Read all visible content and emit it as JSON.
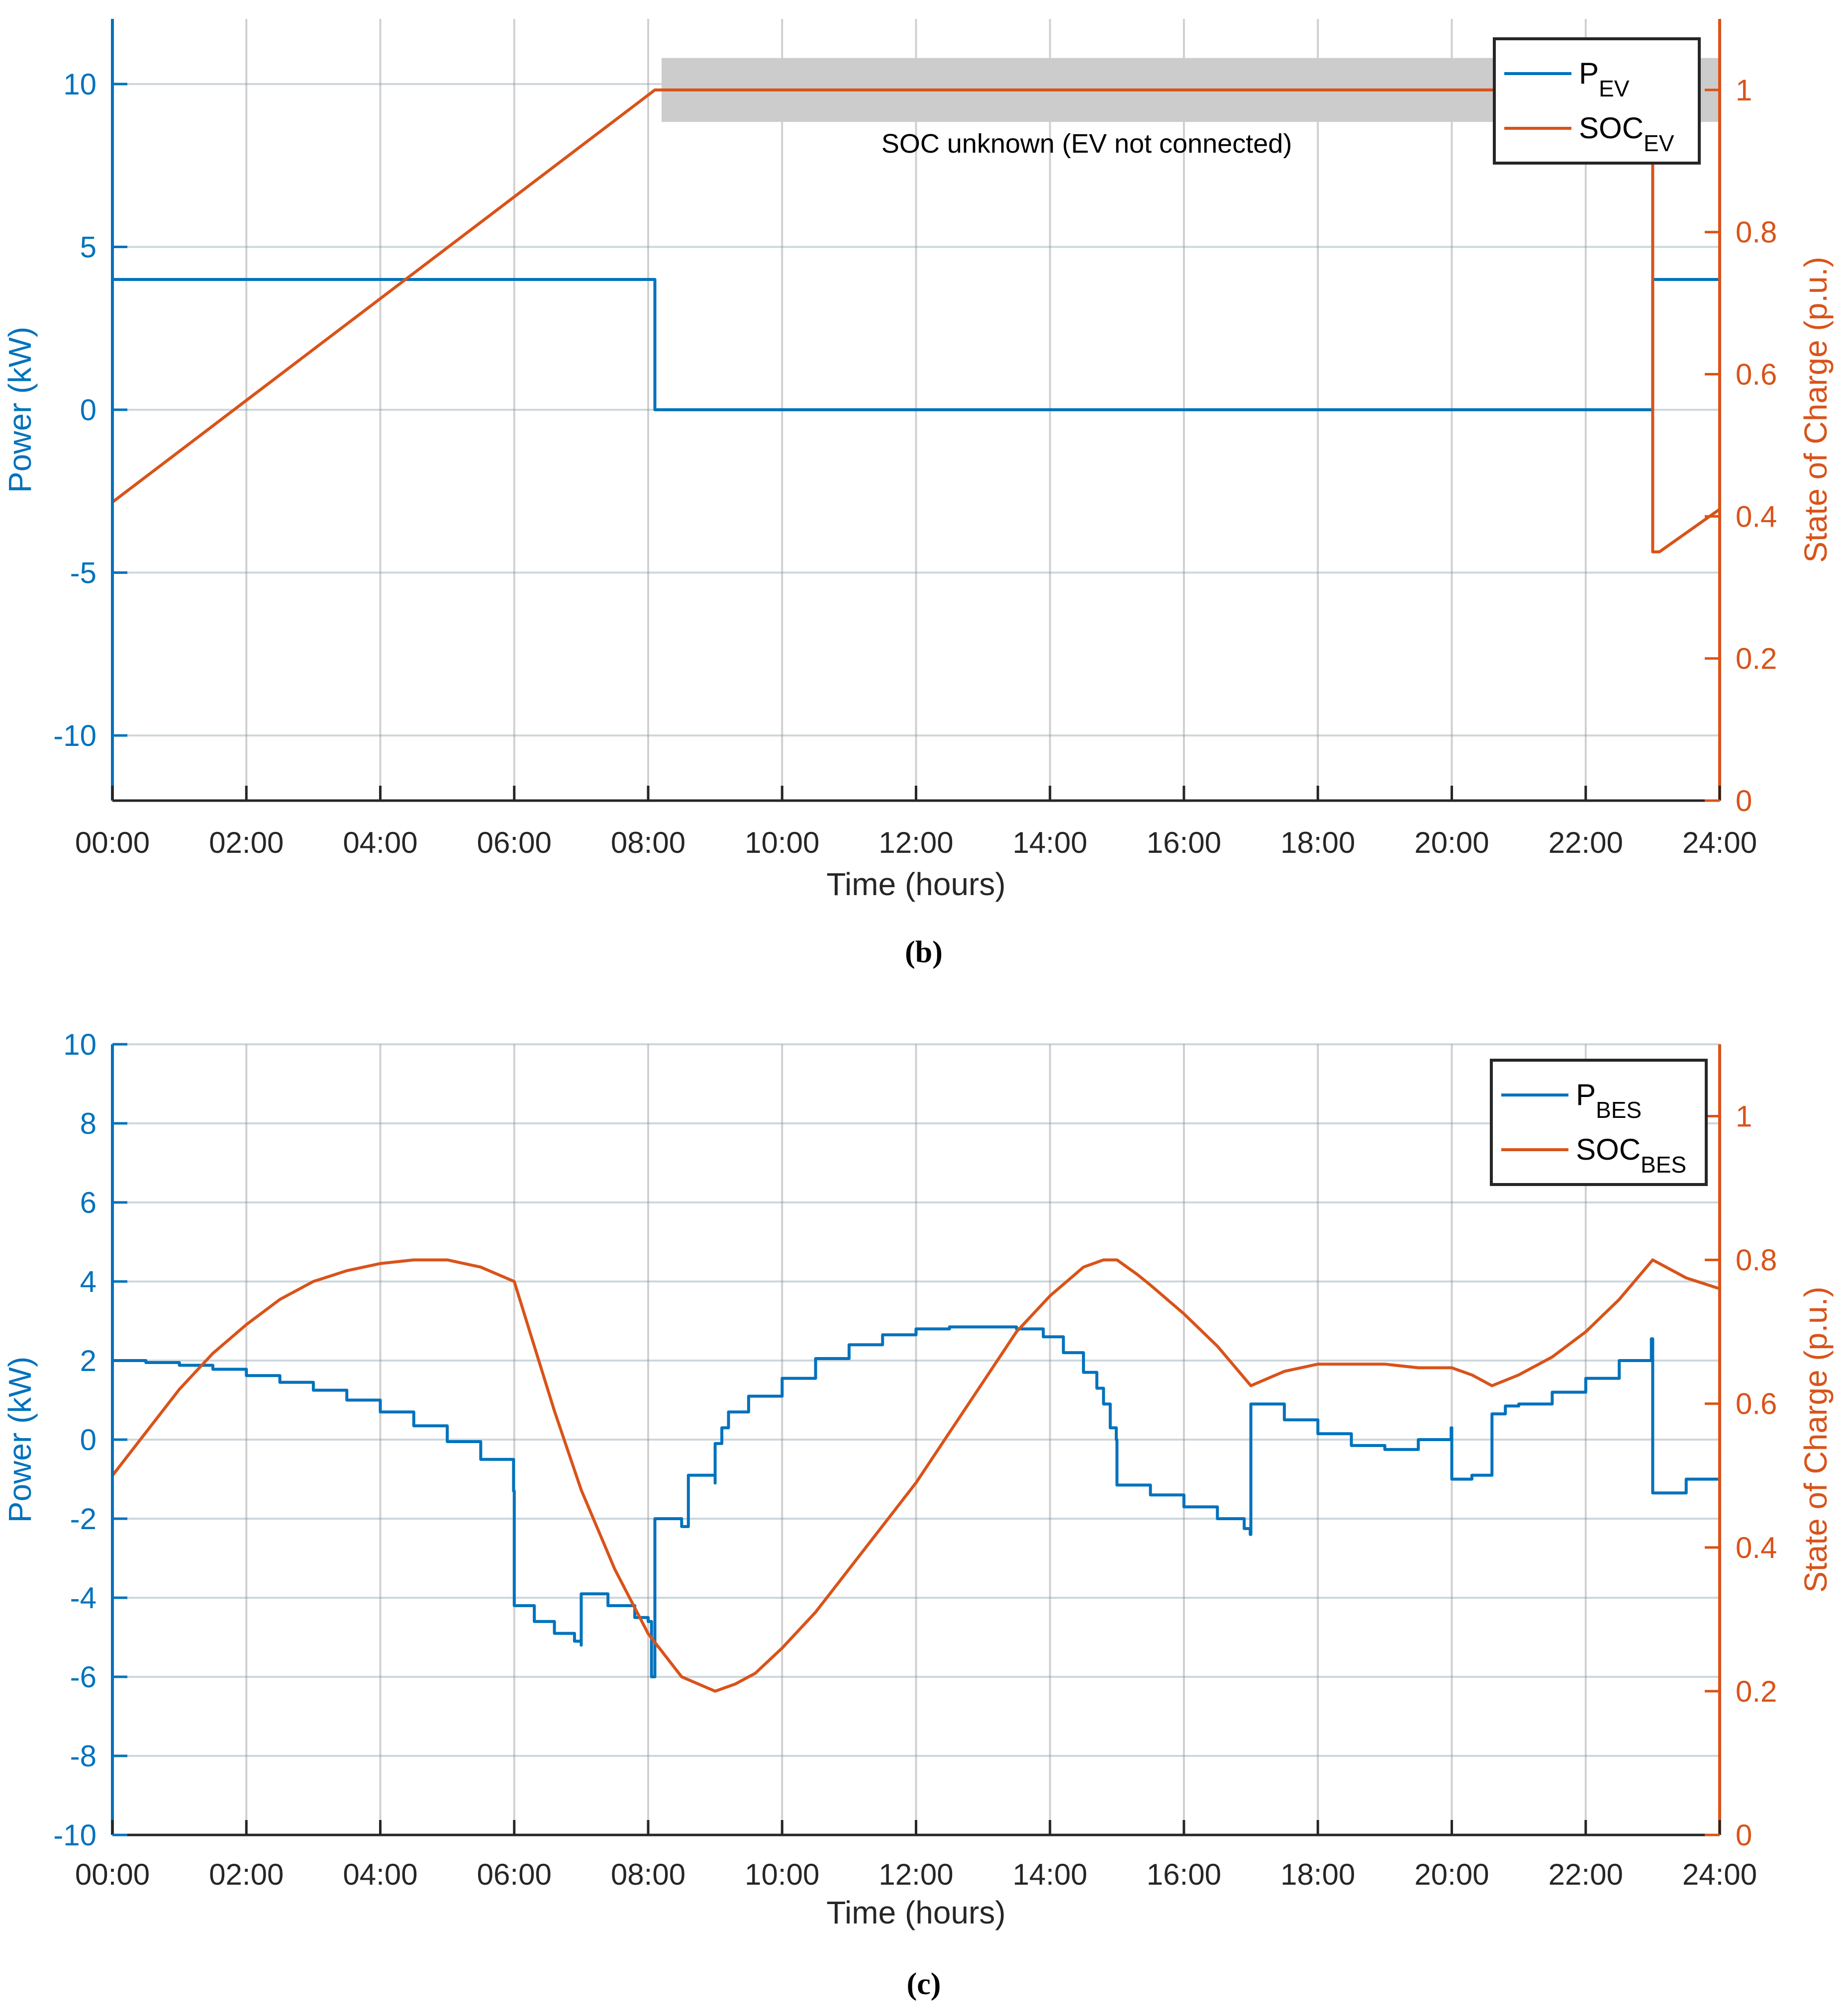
{
  "colors": {
    "power": "#0072BD",
    "soc": "#D95319",
    "grid": "#b8c7cf",
    "vgrid": "#8c8c8c",
    "shade": "#cccccc",
    "text": "#262626"
  },
  "chart_data": [
    {
      "type": "line",
      "panel_label": "(b)",
      "xlabel": "Time (hours)",
      "ylabel_left": "Power (kW)",
      "ylabel_right": "State of Charge (p.u.)",
      "xlim": [
        0,
        24
      ],
      "ylim_left": [
        -12,
        12
      ],
      "ylim_right": [
        0,
        1.1
      ],
      "xticks": [
        0,
        2,
        4,
        6,
        8,
        10,
        12,
        14,
        16,
        18,
        20,
        22,
        24
      ],
      "xtick_labels": [
        "00:00",
        "02:00",
        "04:00",
        "06:00",
        "08:00",
        "10:00",
        "12:00",
        "14:00",
        "16:00",
        "18:00",
        "20:00",
        "22:00",
        "24:00"
      ],
      "yticks_left": [
        -10,
        -5,
        0,
        5,
        10
      ],
      "ytick_labels_left": [
        "-10",
        "-5",
        "0",
        "5",
        "10"
      ],
      "yticks_right": [
        0,
        0.2,
        0.4,
        0.6,
        0.8,
        1
      ],
      "ytick_labels_right": [
        "0",
        "0.2",
        "0.4",
        "0.6",
        "0.8",
        "1"
      ],
      "grid": true,
      "legend_position": "top-right",
      "legend": [
        {
          "series": "power",
          "main": "P",
          "sub": "EV"
        },
        {
          "series": "soc",
          "main": "SOC",
          "sub": "EV"
        }
      ],
      "annotation": {
        "text": "SOC unknown (EV not connected)",
        "x_range": [
          8.2,
          24
        ],
        "soc_range": [
          0.955,
          1.045
        ]
      },
      "series": [
        {
          "key": "power",
          "axis": "left",
          "step": true,
          "x": [
            0,
            8.1,
            8.1,
            23.0,
            23.0,
            24
          ],
          "y": [
            4,
            4,
            0,
            0,
            4,
            4
          ]
        },
        {
          "key": "soc",
          "axis": "right",
          "step": false,
          "x": [
            0,
            8.1,
            23.0,
            23.0,
            23.1,
            24
          ],
          "y": [
            0.42,
            1.0,
            1.0,
            0.35,
            0.35,
            0.41
          ]
        }
      ]
    },
    {
      "type": "line",
      "panel_label": "(c)",
      "xlabel": "Time (hours)",
      "ylabel_left": "Power (kW)",
      "ylabel_right": "State of Charge (p.u.)",
      "xlim": [
        0,
        24
      ],
      "ylim_left": [
        -10,
        10
      ],
      "ylim_right": [
        0,
        1.1
      ],
      "xticks": [
        0,
        2,
        4,
        6,
        8,
        10,
        12,
        14,
        16,
        18,
        20,
        22,
        24
      ],
      "xtick_labels": [
        "00:00",
        "02:00",
        "04:00",
        "06:00",
        "08:00",
        "10:00",
        "12:00",
        "14:00",
        "16:00",
        "18:00",
        "20:00",
        "22:00",
        "24:00"
      ],
      "yticks_left": [
        -10,
        -8,
        -6,
        -4,
        -2,
        0,
        2,
        4,
        6,
        8,
        10
      ],
      "ytick_labels_left": [
        "-10",
        "-8",
        "-6",
        "-4",
        "-2",
        "0",
        "2",
        "4",
        "6",
        "8",
        "10"
      ],
      "yticks_right": [
        0,
        0.2,
        0.4,
        0.6,
        0.8,
        1
      ],
      "ytick_labels_right": [
        "0",
        "0.2",
        "0.4",
        "0.6",
        "0.8",
        "1"
      ],
      "grid": true,
      "legend_position": "top-right",
      "legend": [
        {
          "series": "power",
          "main": "P",
          "sub": "BES"
        },
        {
          "series": "soc",
          "main": "SOC",
          "sub": "BES"
        }
      ],
      "series": [
        {
          "key": "power",
          "axis": "left",
          "step": true,
          "x": [
            0,
            0.5,
            1,
            1.5,
            2,
            2.5,
            3,
            3.5,
            4,
            4.5,
            5,
            5.5,
            5.99,
            6.0,
            6.3,
            6.6,
            6.9,
            7.0,
            7.0,
            7.4,
            7.8,
            8.0,
            8.05,
            8.05,
            8.1,
            8.1,
            8.5,
            8.6,
            8.6,
            9.0,
            9.0,
            9.1,
            9.2,
            9.5,
            10,
            10.5,
            11,
            11.5,
            12,
            12.5,
            13,
            13.5,
            13.9,
            14.2,
            14.5,
            14.7,
            14.8,
            14.9,
            14.99,
            15.0,
            15.5,
            16,
            16.5,
            16.9,
            16.99,
            17.0,
            17.5,
            18,
            18.5,
            19,
            19.5,
            19.99,
            20.0,
            20.3,
            20.6,
            20.6,
            20.8,
            21.0,
            21.5,
            22,
            22.5,
            22.98,
            23.0,
            23.5,
            24
          ],
          "y": [
            2.0,
            1.95,
            1.88,
            1.78,
            1.62,
            1.45,
            1.25,
            1.0,
            0.7,
            0.35,
            -0.05,
            -0.5,
            -1.3,
            -4.2,
            -4.6,
            -4.9,
            -5.1,
            -5.2,
            -3.9,
            -4.2,
            -4.5,
            -4.6,
            -4.6,
            -6.0,
            -6.0,
            -2.0,
            -2.2,
            -2.2,
            -0.9,
            -1.1,
            -0.1,
            0.3,
            0.7,
            1.1,
            1.55,
            2.05,
            2.4,
            2.65,
            2.8,
            2.85,
            2.85,
            2.8,
            2.6,
            2.2,
            1.7,
            1.3,
            0.9,
            0.3,
            0.0,
            -1.15,
            -1.4,
            -1.7,
            -2.0,
            -2.25,
            -2.4,
            0.9,
            0.5,
            0.15,
            -0.15,
            -0.25,
            0.0,
            0.3,
            -1.0,
            -0.9,
            -0.6,
            0.65,
            0.85,
            0.9,
            1.2,
            1.55,
            2.0,
            2.55,
            -1.35,
            -1.0,
            -0.5
          ]
        },
        {
          "key": "soc",
          "axis": "right",
          "step": false,
          "x": [
            0,
            0.5,
            1,
            1.5,
            2,
            2.5,
            3,
            3.5,
            4,
            4.5,
            5,
            5.5,
            6.0,
            6.3,
            6.6,
            7.0,
            7.5,
            8.0,
            8.5,
            9.0,
            9.3,
            9.6,
            10,
            10.5,
            11,
            11.5,
            12,
            12.5,
            13,
            13.5,
            14,
            14.5,
            14.8,
            15.0,
            15.3,
            15.5,
            16,
            16.5,
            17.0,
            17.5,
            18,
            18.5,
            19,
            19.5,
            20,
            20.3,
            20.6,
            21,
            21.5,
            22,
            22.5,
            23.0,
            23.5,
            24
          ],
          "y": [
            0.5,
            0.56,
            0.62,
            0.67,
            0.71,
            0.745,
            0.77,
            0.785,
            0.795,
            0.8,
            0.8,
            0.79,
            0.77,
            0.68,
            0.59,
            0.48,
            0.37,
            0.28,
            0.22,
            0.2,
            0.21,
            0.225,
            0.26,
            0.31,
            0.37,
            0.43,
            0.49,
            0.56,
            0.63,
            0.7,
            0.75,
            0.79,
            0.8,
            0.8,
            0.78,
            0.765,
            0.725,
            0.68,
            0.625,
            0.645,
            0.655,
            0.655,
            0.655,
            0.65,
            0.65,
            0.64,
            0.625,
            0.64,
            0.665,
            0.7,
            0.745,
            0.8,
            0.775,
            0.76
          ]
        }
      ]
    }
  ]
}
